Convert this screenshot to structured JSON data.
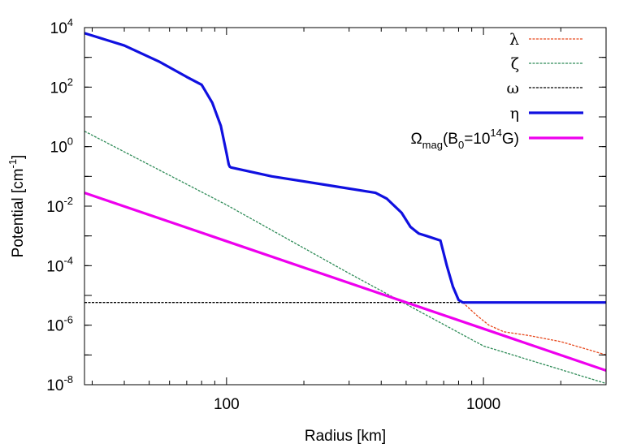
{
  "chart_data": {
    "type": "line",
    "xlabel": "Radius [km]",
    "ylabel_base": "Potential [cm",
    "ylabel_exp": "-1",
    "ylabel_tail": "]",
    "x_scale": "log",
    "y_scale": "log",
    "xlim": [
      28,
      3000
    ],
    "ylim": [
      1e-08,
      10000.0
    ],
    "grid": false,
    "legend_position": "top-right",
    "x_ticks": [
      {
        "value": 100,
        "label": "100"
      },
      {
        "value": 1000,
        "label": "1000"
      }
    ],
    "y_ticks": [
      {
        "value": 10000.0,
        "base": "10",
        "exp": "4"
      },
      {
        "value": 100.0,
        "base": "10",
        "exp": "2"
      },
      {
        "value": 1.0,
        "base": "10",
        "exp": "0"
      },
      {
        "value": 0.01,
        "base": "10",
        "exp": "-2"
      },
      {
        "value": 0.0001,
        "base": "10",
        "exp": "-4"
      },
      {
        "value": 1e-06,
        "base": "10",
        "exp": "-6"
      },
      {
        "value": 1e-08,
        "base": "10",
        "exp": "-8"
      }
    ],
    "series": [
      {
        "name": "λ",
        "color": "#e8491d",
        "dash": "dashed",
        "x": [
          830,
          870,
          950,
          1050,
          1200,
          1500,
          2000,
          2500,
          3000
        ],
        "y": [
          5.8e-06,
          4e-06,
          2e-06,
          1e-06,
          6e-07,
          4.5e-07,
          2.8e-07,
          1.6e-07,
          1e-07
        ]
      },
      {
        "name": "ζ",
        "color": "#2e8b57",
        "dash": "dashed",
        "x": [
          28,
          100,
          300,
          1000,
          3000
        ],
        "y": [
          3.3,
          0.011,
          5.5e-05,
          2e-07,
          1.1e-08
        ]
      },
      {
        "name": "ω",
        "color": "#000000",
        "dash": "dashed",
        "x": [
          28,
          3000
        ],
        "y": [
          5.8e-06,
          5.8e-06
        ]
      },
      {
        "name": "η",
        "color": "#1010e0",
        "dash": "solid",
        "x": [
          28,
          40,
          55,
          70,
          80,
          88,
          95,
          100,
          102,
          103,
          104,
          150,
          250,
          380,
          420,
          480,
          520,
          560,
          600,
          680,
          720,
          760,
          800,
          830,
          3000
        ],
        "y": [
          6500,
          2500,
          700,
          220,
          120,
          30,
          5,
          0.6,
          0.25,
          0.21,
          0.2,
          0.1,
          0.05,
          0.028,
          0.018,
          0.006,
          0.002,
          0.0012,
          0.001,
          0.0007,
          0.0001,
          2e-05,
          7e-06,
          5.8e-06,
          5.8e-06
        ]
      },
      {
        "name": "Ω_mag(B_0=10^14G)",
        "color": "#ee00ee",
        "dash": "solid",
        "x": [
          28,
          3000
        ],
        "y": [
          0.028,
          3e-08
        ]
      }
    ],
    "legend": [
      {
        "key": "lambda",
        "label": "λ",
        "color": "#e8491d",
        "dash": "dashed"
      },
      {
        "key": "zeta",
        "label": "ζ",
        "color": "#2e8b57",
        "dash": "dashed"
      },
      {
        "key": "omega",
        "label": "ω",
        "color": "#000000",
        "dash": "dashed"
      },
      {
        "key": "eta",
        "label": "η",
        "color": "#1010e0",
        "dash": "solid"
      },
      {
        "key": "omega-mag",
        "label_parts": {
          "main": "Ω",
          "sub": "mag",
          "mid": "(B",
          "sub2": "0",
          "mid2": "=10",
          "sup": "14",
          "tail": "G)"
        },
        "color": "#ee00ee",
        "dash": "solid"
      }
    ]
  }
}
